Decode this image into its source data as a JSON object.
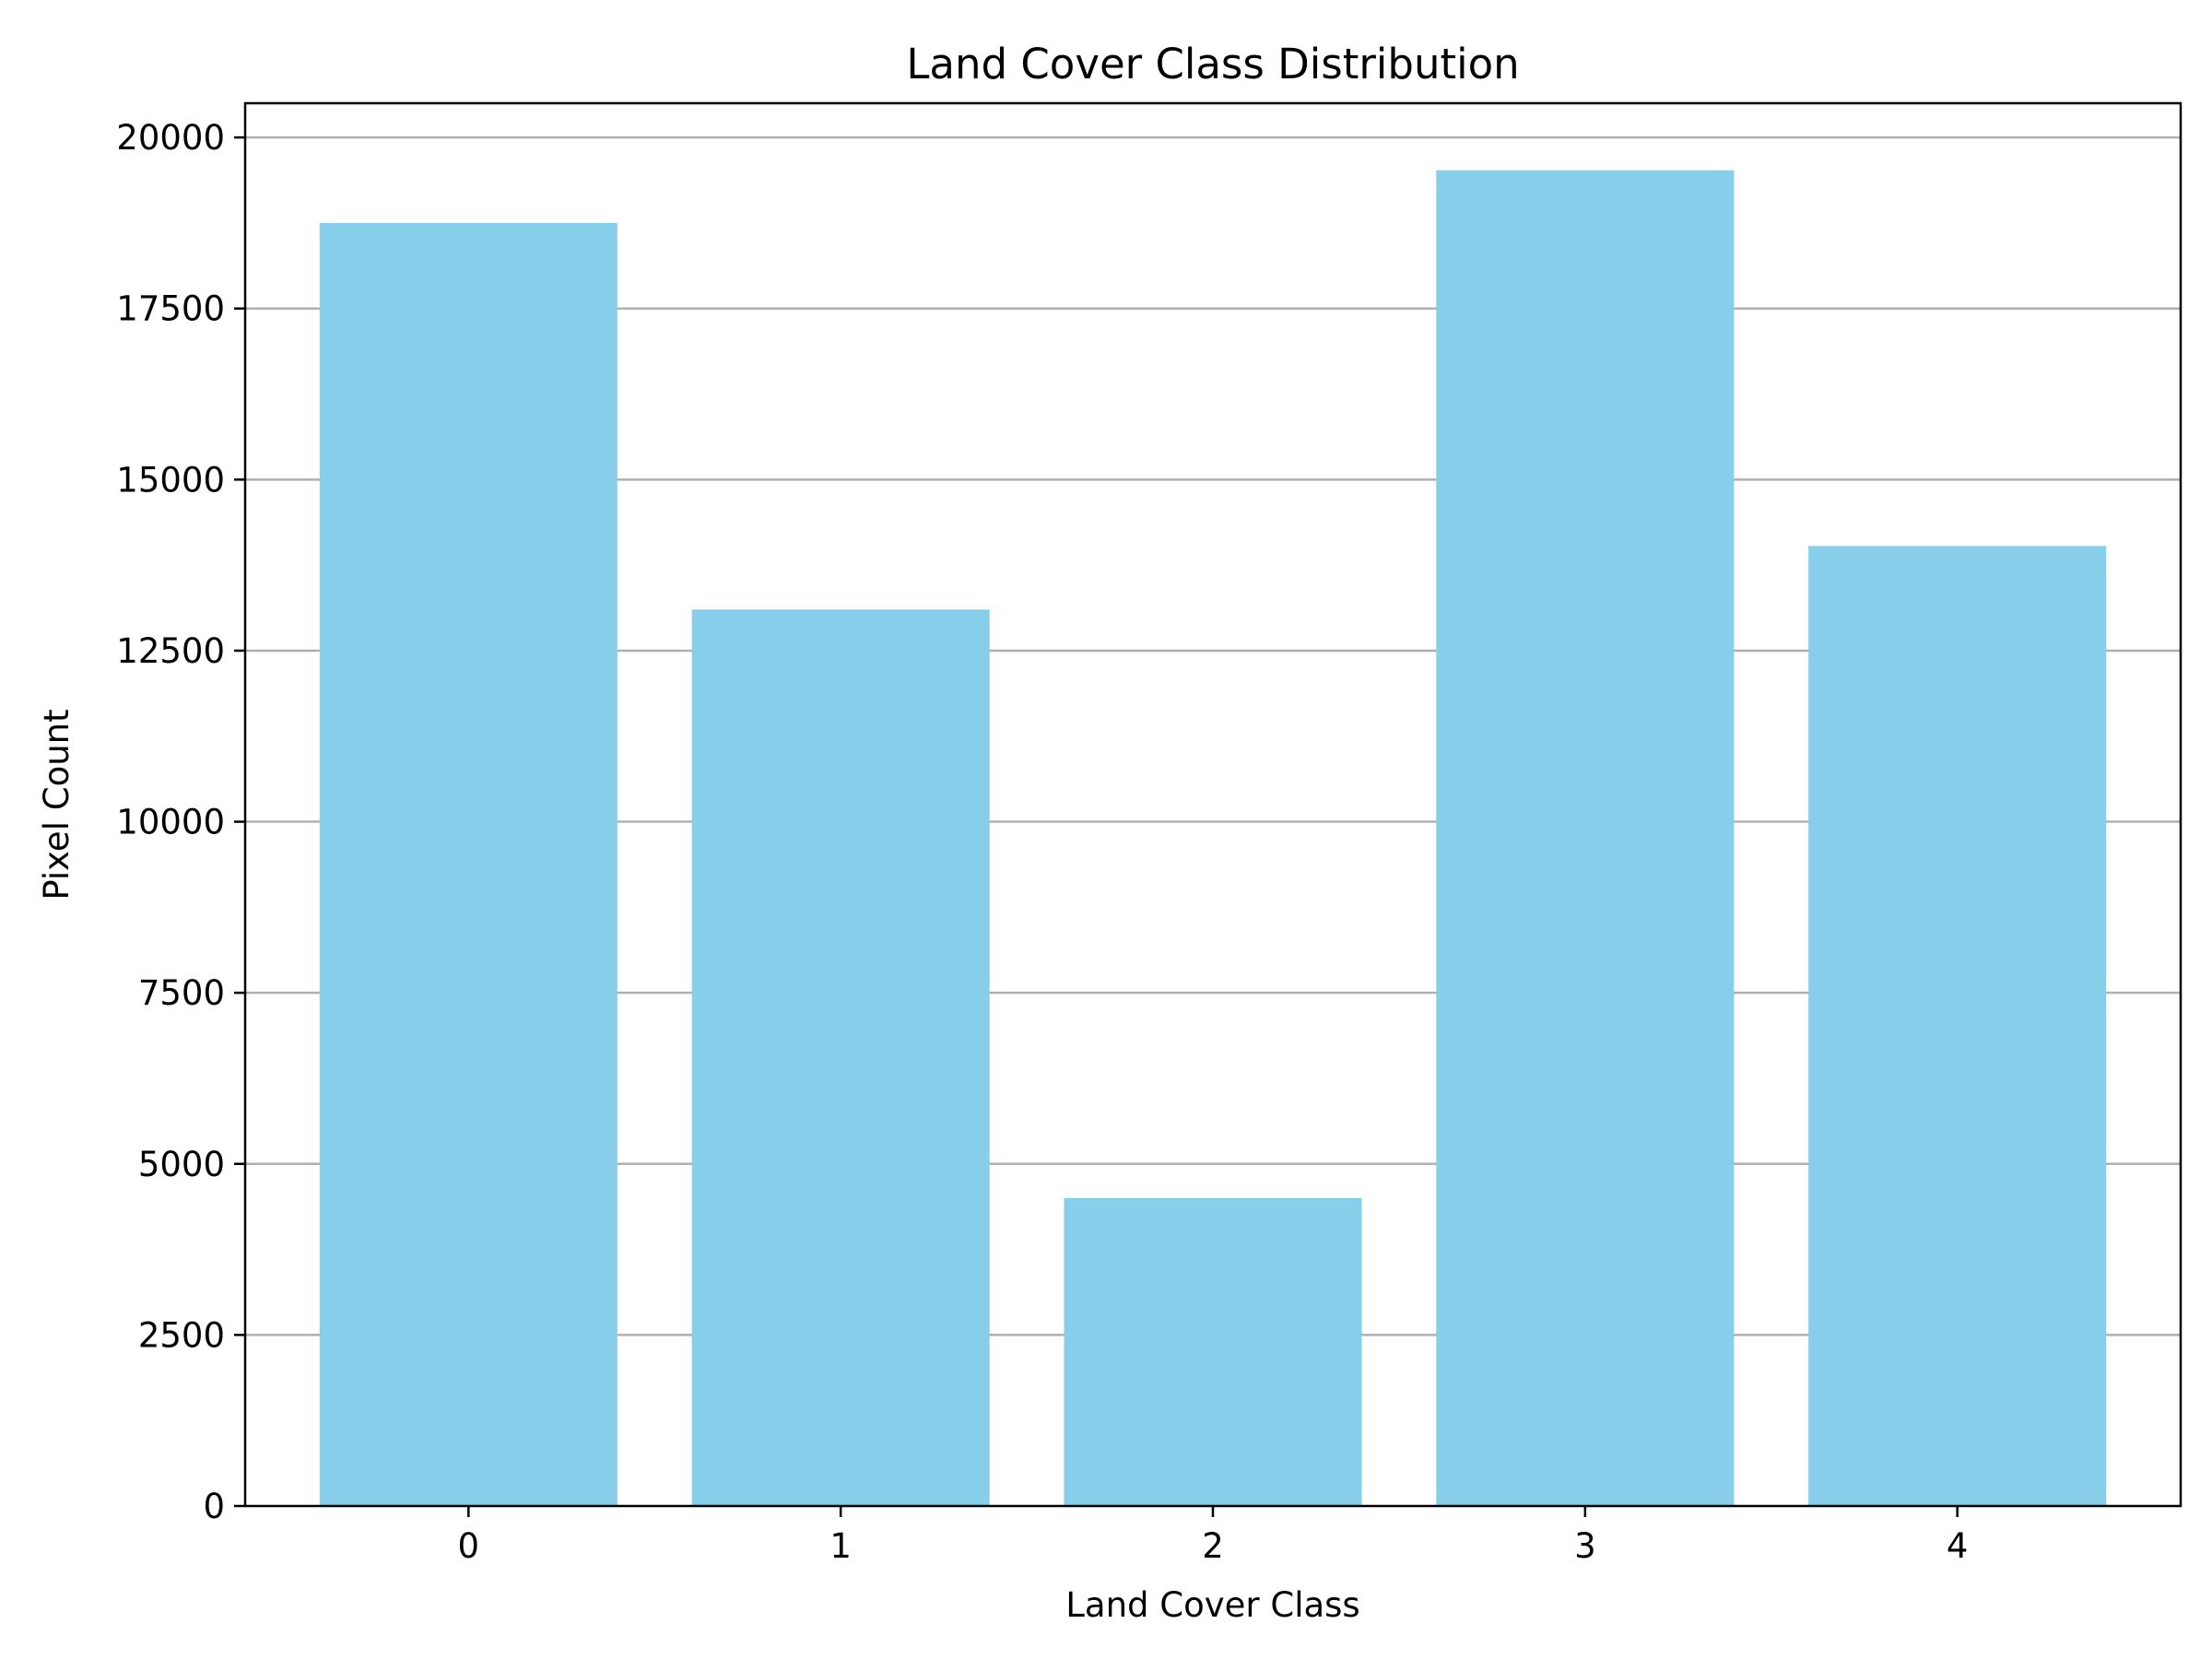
{
  "chart_data": {
    "type": "bar",
    "title": "Land Cover Class Distribution",
    "xlabel": "Land Cover Class",
    "ylabel": "Pixel Count",
    "categories": [
      "0",
      "1",
      "2",
      "3",
      "4"
    ],
    "values": [
      18750,
      13100,
      4500,
      19520,
      14030
    ],
    "ylim": [
      0,
      20500
    ],
    "yticks": [
      0,
      2500,
      5000,
      7500,
      10000,
      12500,
      15000,
      17500,
      20000
    ],
    "ytick_labels": [
      "0",
      "2500",
      "5000",
      "7500",
      "10000",
      "12500",
      "15000",
      "17500",
      "20000"
    ],
    "grid": "horizontal",
    "bar_color": "#87CEEB",
    "grid_color": "#b0b0b0"
  }
}
